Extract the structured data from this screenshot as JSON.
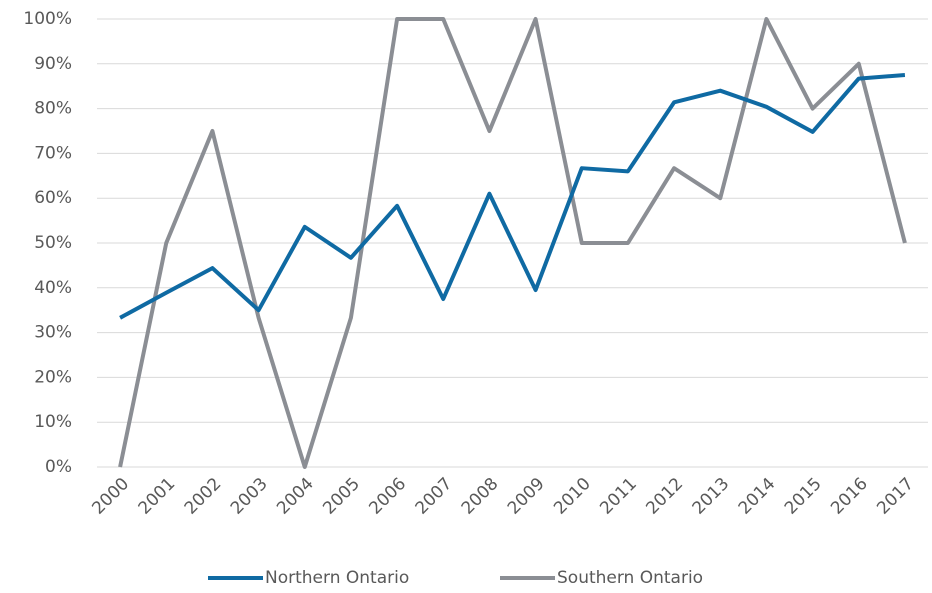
{
  "chart_data": {
    "type": "line",
    "categories": [
      "2000",
      "2001",
      "2002",
      "2003",
      "2004",
      "2005",
      "2006",
      "2007",
      "2008",
      "2009",
      "2010",
      "2011",
      "2012",
      "2013",
      "2014",
      "2015",
      "2016",
      "2017"
    ],
    "series": [
      {
        "name": "Northern Ontario",
        "color": "#0f6aa3",
        "values": [
          33.3,
          38.9,
          44.4,
          35.0,
          53.6,
          46.7,
          58.3,
          37.5,
          61.0,
          39.5,
          66.7,
          66.0,
          81.4,
          84.0,
          80.4,
          74.8,
          86.7,
          87.5
        ]
      },
      {
        "name": "Southern Ontario",
        "color": "#8b8e94",
        "values": [
          0,
          50,
          75,
          33.3,
          0,
          33.3,
          100,
          100,
          75,
          100,
          50,
          50,
          66.7,
          60,
          100,
          80,
          90,
          50
        ]
      }
    ],
    "ylim": [
      0,
      100
    ],
    "yticks": [
      {
        "value": 0,
        "label": "0%"
      },
      {
        "value": 10,
        "label": "10%"
      },
      {
        "value": 20,
        "label": "20%"
      },
      {
        "value": 30,
        "label": "30%"
      },
      {
        "value": 40,
        "label": "40%"
      },
      {
        "value": 50,
        "label": "50%"
      },
      {
        "value": 60,
        "label": "60%"
      },
      {
        "value": 70,
        "label": "70%"
      },
      {
        "value": 80,
        "label": "80%"
      },
      {
        "value": 90,
        "label": "90%"
      },
      {
        "value": 100,
        "label": "100%"
      }
    ],
    "grid": true,
    "legend": "bottom"
  }
}
